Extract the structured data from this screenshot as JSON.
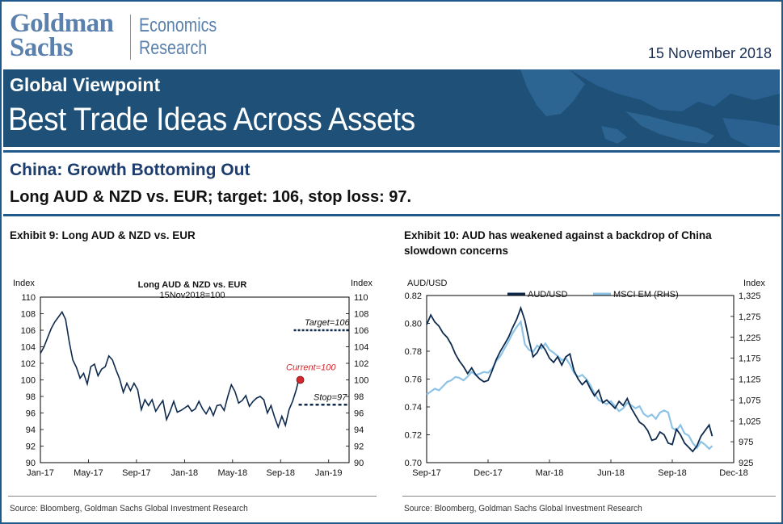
{
  "header": {
    "logo_line1": "Goldman",
    "logo_line2": "Sachs",
    "econ_line1": "Economics",
    "econ_line2": "Research",
    "date": "15 November 2018"
  },
  "banner": {
    "series": "Global Viewpoint",
    "title": "Best Trade Ideas Across Assets"
  },
  "section": {
    "title": "China: Growth Bottoming Out",
    "trade": "Long AUD & NZD vs. EUR; target: 106, stop loss: 97."
  },
  "colors": {
    "banner": "#1e5078",
    "navy_line": "#0e2a4d",
    "light_blue_line": "#8ec3e6",
    "current_marker": "#d0282e",
    "frame": "#1f5a8a"
  },
  "exhibit9": {
    "title": "Exhibit 9: Long AUD & NZD vs. EUR",
    "source": "Source: Bloomberg, Goldman Sachs Global Investment Research"
  },
  "exhibit10": {
    "title_line1": "Exhibit 10: AUD has weakened against a backdrop of China",
    "title_line2": "slowdown concerns",
    "source": "Source: Bloomberg, Goldman Sachs Global Investment Research"
  },
  "chart_data": [
    {
      "type": "line",
      "title": "Long AUD & NZD vs. EUR",
      "subtitle": "15Nov2018=100",
      "ylabel": "Index",
      "ylabel_right": "Index",
      "ylim": [
        90,
        110
      ],
      "yticks": [
        90,
        92,
        94,
        96,
        98,
        100,
        102,
        104,
        106,
        108,
        110
      ],
      "x_tick_labels": [
        "Jan-17",
        "May-17",
        "Sep-17",
        "Jan-18",
        "May-18",
        "Sep-18",
        "Jan-19"
      ],
      "x_tick_positions": [
        0,
        4,
        8,
        12,
        16,
        20,
        24
      ],
      "xlim": [
        0,
        25.7
      ],
      "grid": false,
      "series": [
        {
          "values_x": [
            0,
            0.3,
            0.6,
            0.9,
            1.2,
            1.5,
            1.8,
            2.1,
            2.4,
            2.7,
            3.0,
            3.3,
            3.6,
            3.9,
            4.2,
            4.5,
            4.8,
            5.1,
            5.4,
            5.7,
            6.0,
            6.3,
            6.6,
            6.9,
            7.2,
            7.5,
            7.8,
            8.1,
            8.4,
            8.7,
            9.0,
            9.3,
            9.6,
            9.9,
            10.2,
            10.5,
            10.8,
            11.1,
            11.4,
            11.7,
            12.0,
            12.3,
            12.6,
            12.9,
            13.2,
            13.5,
            13.8,
            14.1,
            14.4,
            14.7,
            15.0,
            15.3,
            15.6,
            15.9,
            16.2,
            16.5,
            16.8,
            17.1,
            17.4,
            17.7,
            18.0,
            18.3,
            18.6,
            18.9,
            19.2,
            19.5,
            19.8,
            20.1,
            20.4,
            20.7,
            21.0,
            21.3,
            21.5
          ],
          "values": [
            103.2,
            104.0,
            105.1,
            106.2,
            107.0,
            107.6,
            108.2,
            107.3,
            104.6,
            102.4,
            101.5,
            100.2,
            100.8,
            99.5,
            101.6,
            101.9,
            100.5,
            101.3,
            101.6,
            102.9,
            102.4,
            101.2,
            100.1,
            98.5,
            99.6,
            98.7,
            99.6,
            98.8,
            96.4,
            97.6,
            96.9,
            97.6,
            96.2,
            96.9,
            97.5,
            95.2,
            96.2,
            97.4,
            96.1,
            96.3,
            96.6,
            96.9,
            96.2,
            96.5,
            97.4,
            96.5,
            95.9,
            96.7,
            95.7,
            96.9,
            97.0,
            96.3,
            98.0,
            99.4,
            98.6,
            97.2,
            97.5,
            98.1,
            96.8,
            97.4,
            97.8,
            98.0,
            97.6,
            96.0,
            96.9,
            95.5,
            94.3,
            95.6,
            94.5,
            96.4,
            97.4,
            98.8,
            100.0
          ]
        }
      ],
      "annotations": [
        {
          "text": "Target=106",
          "value": 106
        },
        {
          "text": "Current=100",
          "value": 100
        },
        {
          "text": "Stop=97",
          "value": 97
        }
      ]
    },
    {
      "type": "line",
      "ylabel": "AUD/USD",
      "ylabel_right": "Index",
      "ylim": [
        0.7,
        0.82
      ],
      "yticks": [
        0.7,
        0.72,
        0.74,
        0.76,
        0.78,
        0.8,
        0.82
      ],
      "ylim_right": [
        925,
        1325
      ],
      "yticks_right": [
        925,
        975,
        1025,
        1075,
        1125,
        1175,
        1225,
        1275,
        1325
      ],
      "y_tick_labels_right": [
        "925",
        "975",
        "1,025",
        "1,075",
        "1,125",
        "1,175",
        "1,225",
        "1,275",
        "1,325"
      ],
      "x_tick_labels": [
        "Sep-17",
        "Dec-17",
        "Mar-18",
        "Jun-18",
        "Sep-18",
        "Dec-18"
      ],
      "x_tick_positions": [
        0,
        3,
        6,
        9,
        12,
        15
      ],
      "xlim": [
        0,
        15
      ],
      "legend": "top",
      "grid": false,
      "series": [
        {
          "name": "AUD/USD",
          "axis": "left",
          "values_x": [
            0,
            0.2,
            0.4,
            0.6,
            0.8,
            1.0,
            1.2,
            1.4,
            1.6,
            1.8,
            2.0,
            2.2,
            2.4,
            2.6,
            2.8,
            3.0,
            3.2,
            3.4,
            3.6,
            3.8,
            4.0,
            4.2,
            4.4,
            4.6,
            4.8,
            5.0,
            5.2,
            5.4,
            5.6,
            5.8,
            6.0,
            6.2,
            6.4,
            6.6,
            6.8,
            7.0,
            7.2,
            7.4,
            7.6,
            7.8,
            8.0,
            8.2,
            8.4,
            8.6,
            8.8,
            9.0,
            9.2,
            9.4,
            9.6,
            9.8,
            10.0,
            10.2,
            10.4,
            10.6,
            10.8,
            11.0,
            11.2,
            11.4,
            11.6,
            11.8,
            12.0,
            12.2,
            12.4,
            12.6,
            12.8,
            13.0,
            13.2,
            13.4,
            13.6,
            13.8,
            13.95
          ],
          "values": [
            0.799,
            0.806,
            0.801,
            0.798,
            0.793,
            0.79,
            0.785,
            0.778,
            0.773,
            0.769,
            0.764,
            0.768,
            0.763,
            0.76,
            0.758,
            0.759,
            0.766,
            0.774,
            0.78,
            0.785,
            0.79,
            0.797,
            0.803,
            0.811,
            0.802,
            0.788,
            0.776,
            0.779,
            0.785,
            0.781,
            0.775,
            0.772,
            0.776,
            0.77,
            0.776,
            0.778,
            0.766,
            0.76,
            0.756,
            0.759,
            0.753,
            0.748,
            0.752,
            0.743,
            0.745,
            0.742,
            0.739,
            0.744,
            0.741,
            0.746,
            0.739,
            0.734,
            0.729,
            0.727,
            0.723,
            0.716,
            0.717,
            0.722,
            0.72,
            0.714,
            0.713,
            0.724,
            0.72,
            0.714,
            0.711,
            0.708,
            0.712,
            0.719,
            0.723,
            0.727,
            0.719
          ]
        },
        {
          "name": "MSCI EM (RHS)",
          "axis": "right",
          "values_x": [
            0,
            0.2,
            0.4,
            0.6,
            0.8,
            1.0,
            1.2,
            1.4,
            1.6,
            1.8,
            2.0,
            2.2,
            2.4,
            2.6,
            2.8,
            3.0,
            3.2,
            3.4,
            3.6,
            3.8,
            4.0,
            4.2,
            4.4,
            4.6,
            4.8,
            5.0,
            5.2,
            5.4,
            5.6,
            5.8,
            6.0,
            6.2,
            6.4,
            6.6,
            6.8,
            7.0,
            7.2,
            7.4,
            7.6,
            7.8,
            8.0,
            8.2,
            8.4,
            8.6,
            8.8,
            9.0,
            9.2,
            9.4,
            9.6,
            9.8,
            10.0,
            10.2,
            10.4,
            10.6,
            10.8,
            11.0,
            11.2,
            11.4,
            11.6,
            11.8,
            12.0,
            12.2,
            12.4,
            12.6,
            12.8,
            13.0,
            13.2,
            13.4,
            13.6,
            13.8,
            13.95
          ],
          "values": [
            1088,
            1095,
            1102,
            1098,
            1108,
            1118,
            1122,
            1130,
            1128,
            1122,
            1131,
            1142,
            1135,
            1138,
            1142,
            1140,
            1150,
            1168,
            1180,
            1198,
            1215,
            1235,
            1250,
            1262,
            1208,
            1195,
            1190,
            1205,
            1198,
            1210,
            1195,
            1188,
            1180,
            1170,
            1175,
            1160,
            1140,
            1130,
            1135,
            1125,
            1110,
            1090,
            1075,
            1070,
            1065,
            1072,
            1060,
            1048,
            1055,
            1068,
            1062,
            1055,
            1060,
            1042,
            1035,
            1040,
            1030,
            1045,
            1050,
            1045,
            1008,
            1002,
            1015,
            995,
            990,
            972,
            960,
            975,
            968,
            958,
            965
          ]
        }
      ]
    }
  ]
}
